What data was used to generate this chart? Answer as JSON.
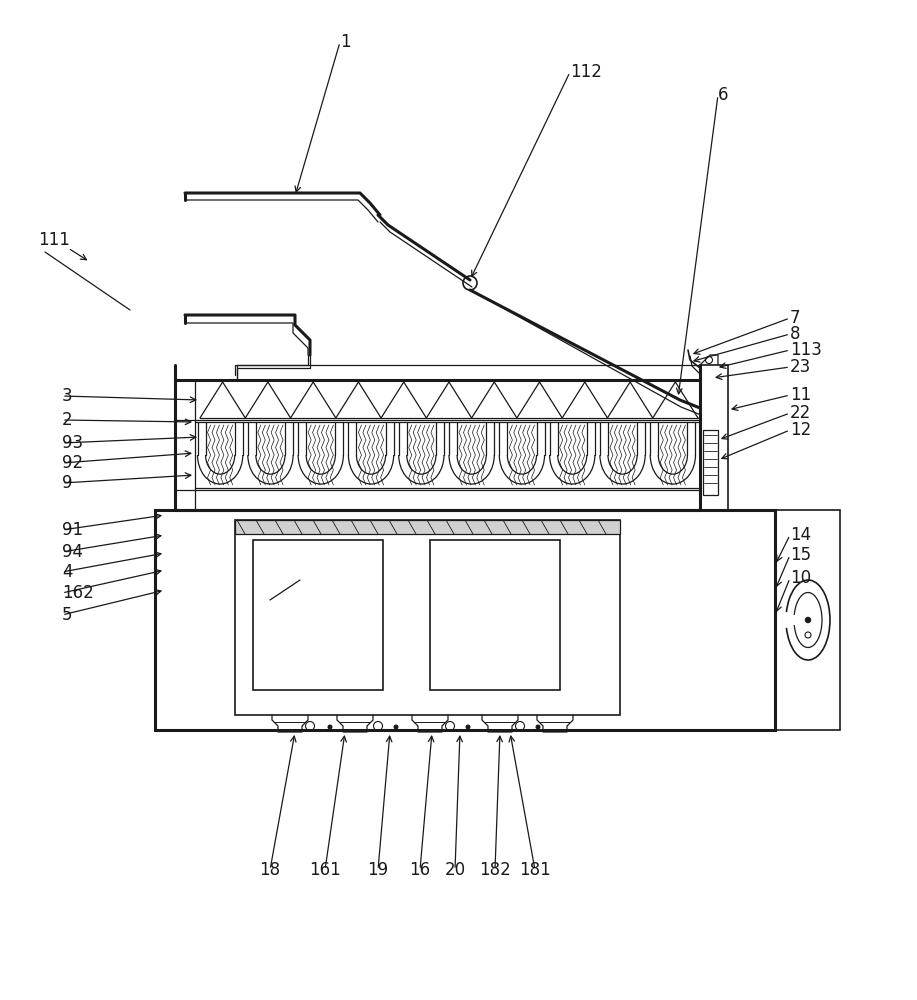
{
  "bg_color": "#ffffff",
  "lc": "#1a1a1a",
  "lw": 1.5,
  "lw_thin": 0.9,
  "lw_thick": 2.2,
  "lw_med": 1.2,
  "fig_w": 9.17,
  "fig_h": 10.0,
  "dpi": 100
}
